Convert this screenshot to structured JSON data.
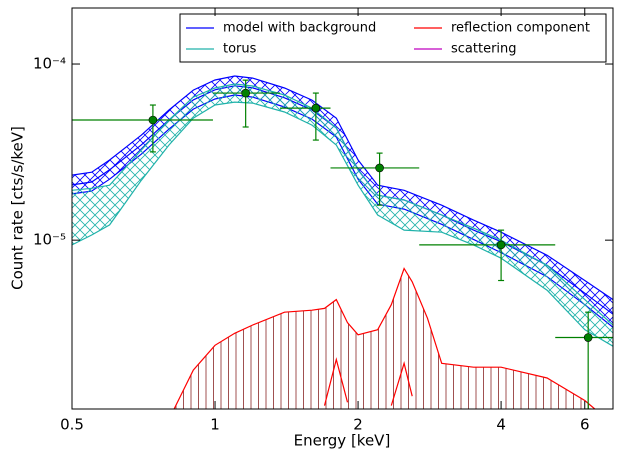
{
  "chart_data": {
    "type": "line",
    "xlabel": "Energy [keV]",
    "ylabel": "Count rate [cts/s/keV]",
    "xscale": "log",
    "yscale": "log",
    "xlim": [
      0.5,
      6.88
    ],
    "ylim": [
      1.1e-06,
      0.000208
    ],
    "xticks": [
      0.5,
      1,
      2,
      4,
      6
    ],
    "yticks": [
      {
        "value": 0.0001,
        "label": "10⁻⁴"
      },
      {
        "value": 1e-05,
        "label": "10⁻⁵"
      }
    ],
    "legend": "upper right",
    "series": [
      {
        "name": "model with background",
        "color": "#0000ff",
        "x": [
          0.5,
          0.55,
          0.6,
          0.7,
          0.8,
          0.9,
          1.0,
          1.1,
          1.2,
          1.4,
          1.6,
          1.8,
          2.0,
          2.2,
          2.5,
          3.0,
          3.5,
          4.0,
          5.0,
          6.0,
          6.88
        ],
        "values": [
          2.06e-05,
          2.14e-05,
          2.51e-05,
          3.48e-05,
          4.82e-05,
          6.26e-05,
          7.14e-05,
          7.52e-05,
          7.32e-05,
          6.43e-05,
          5.49e-05,
          4.34e-05,
          2.51e-05,
          1.8e-05,
          1.69e-05,
          1.39e-05,
          1.14e-05,
          9.8e-06,
          7.2e-06,
          5e-06,
          3.8e-06
        ],
        "upper": [
          2.34e-05,
          2.43e-05,
          2.85e-05,
          3.95e-05,
          5.48e-05,
          7.11e-05,
          8.11e-05,
          8.55e-05,
          8.32e-05,
          7.31e-05,
          6.24e-05,
          4.93e-05,
          2.85e-05,
          2.05e-05,
          1.92e-05,
          1.58e-05,
          1.3e-05,
          1.11e-05,
          8.2e-06,
          5.9e-06,
          4.6e-06
        ],
        "lower": [
          1.83e-05,
          1.9e-05,
          2.22e-05,
          3.08e-05,
          4.27e-05,
          5.55e-05,
          6.33e-05,
          6.67e-05,
          6.49e-05,
          5.7e-05,
          4.87e-05,
          3.85e-05,
          2.22e-05,
          1.6e-05,
          1.5e-05,
          1.23e-05,
          1.01e-05,
          8.5e-06,
          6.2e-06,
          4.3e-06,
          3.2e-06
        ]
      },
      {
        "name": "torus",
        "color": "#20b2aa",
        "x": [
          0.5,
          0.55,
          0.6,
          0.7,
          0.8,
          0.9,
          1.0,
          1.1,
          1.2,
          1.4,
          1.6,
          1.8,
          2.0,
          2.2,
          2.5,
          3.0,
          3.5,
          4.0,
          5.0,
          6.0,
          6.88
        ],
        "upper": [
          1.92e-05,
          1.97e-05,
          2.05e-05,
          3.25e-05,
          4.81e-05,
          6.49e-05,
          7.31e-05,
          7.7e-05,
          7.5e-05,
          6.67e-05,
          5.62e-05,
          4.33e-05,
          2.5e-05,
          1.8e-05,
          1.69e-05,
          1.39e-05,
          1.17e-05,
          1e-05,
          7.2e-06,
          4.6e-06,
          3.3e-06
        ],
        "lower": [
          9.4e-06,
          1.07e-05,
          1.22e-05,
          2.19e-05,
          3.47e-05,
          4.93e-05,
          5.85e-05,
          6.08e-05,
          6e-05,
          5.34e-05,
          4.5e-05,
          3.47e-05,
          2.05e-05,
          1.39e-05,
          1.14e-05,
          1.11e-05,
          9.4e-06,
          7.9e-06,
          5.2e-06,
          3.1e-06,
          2.5e-06
        ]
      },
      {
        "name": "reflection component",
        "color": "#ff0000",
        "x": [
          0.82,
          0.9,
          1.0,
          1.1,
          1.2,
          1.4,
          1.6,
          1.7,
          1.8,
          1.9,
          2.0,
          2.2,
          2.35,
          2.5,
          2.6,
          2.8,
          3.0,
          3.5,
          4.0,
          5.0,
          6.0,
          6.3
        ],
        "upper": [
          1.1e-06,
          1.83e-06,
          2.53e-06,
          2.96e-06,
          3.3e-06,
          3.9e-06,
          4e-06,
          4.1e-06,
          4.6e-06,
          3.4e-06,
          2.9e-06,
          3.1e-06,
          4.3e-06,
          6.9e-06,
          5.8e-06,
          3.6e-06,
          2e-06,
          1.9e-06,
          1.9e-06,
          1.65e-06,
          1.23e-06,
          1.1e-06
        ],
        "lower": [
          null,
          null,
          null,
          null,
          null,
          null,
          null,
          1.15e-06,
          2.1e-06,
          1.2e-06,
          null,
          null,
          1.15e-06,
          2e-06,
          1.3e-06,
          null,
          null,
          null,
          null,
          null,
          null,
          null
        ]
      },
      {
        "name": "scattering",
        "color": "#bf00bf"
      }
    ],
    "data": {
      "color": "#008000",
      "x": [
        0.74,
        1.16,
        1.63,
        2.22,
        4.0,
        6.1
      ],
      "x_low": [
        0.5,
        0.99,
        1.37,
        1.75,
        2.69,
        5.2
      ],
      "x_high": [
        0.99,
        1.37,
        1.75,
        2.69,
        5.2,
        6.88
      ],
      "y": [
        4.81e-05,
        6.84e-05,
        5.62e-05,
        2.57e-05,
        9.4e-06,
        2.8e-06
      ],
      "y_low": [
        3.17e-05,
        4.39e-05,
        3.7e-05,
        1.58e-05,
        5.9e-06,
        1.1e-06
      ],
      "y_high": [
        5.85e-05,
        8.1e-05,
        6.84e-05,
        3.12e-05,
        1.14e-05,
        3.9e-06
      ]
    }
  }
}
